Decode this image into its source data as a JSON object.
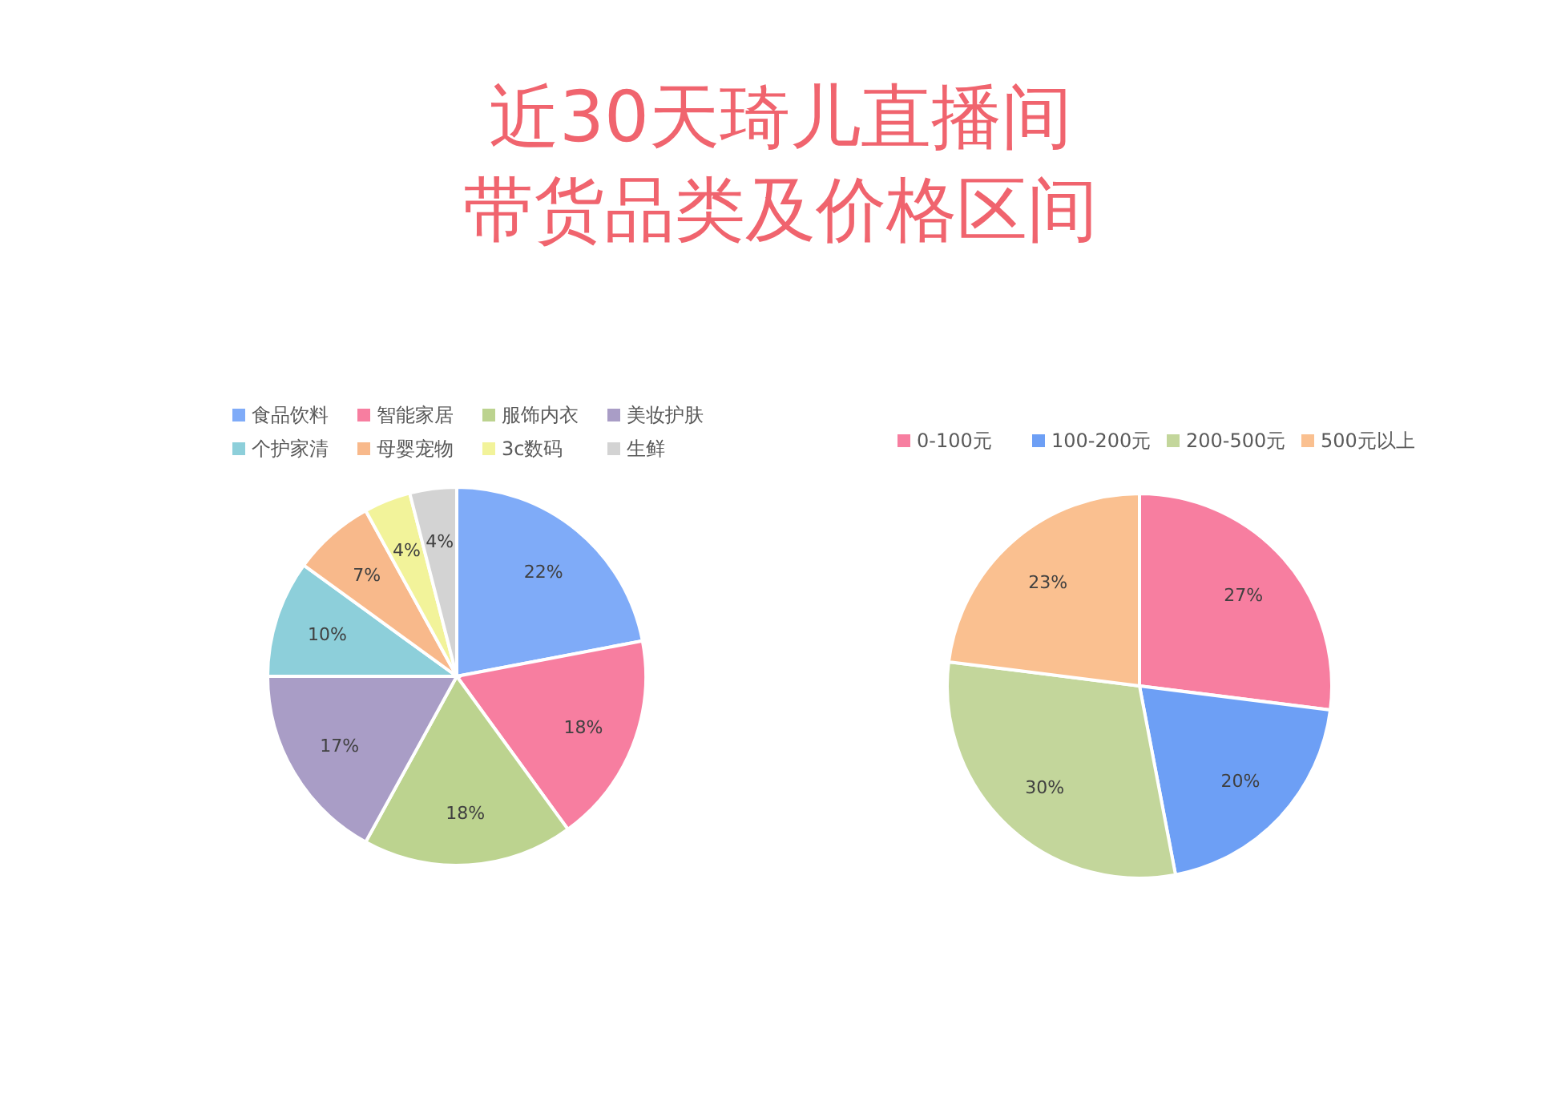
{
  "chart_data": [
    {
      "type": "pie",
      "title": "近30天琦儿直播间",
      "subtitle": "带货品类及价格区间",
      "categories": [
        "食品饮料",
        "智能家居",
        "服饰内衣",
        "美妆护肤",
        "个护家清",
        "母婴宠物",
        "3c数码",
        "生鲜"
      ],
      "values": [
        22,
        18,
        18,
        17,
        10,
        7,
        4,
        4
      ],
      "value_labels": [
        "22%",
        "18%",
        "18%",
        "17%",
        "10%",
        "7%",
        "4%",
        "4%"
      ],
      "colors": [
        "#7fabf8",
        "#f77ea0",
        "#bcd38f",
        "#a99dc6",
        "#8dcfda",
        "#f8b98b",
        "#f2f39a",
        "#d3d3d3"
      ],
      "legend": "top"
    },
    {
      "type": "pie",
      "categories": [
        "0-100元",
        "100-200元",
        "200-500元",
        "500元以上"
      ],
      "values": [
        27,
        20,
        30,
        23
      ],
      "value_labels": [
        "27%",
        "20%",
        "30%",
        "23%"
      ],
      "colors": [
        "#f77ea0",
        "#6d9ff5",
        "#c3d69b",
        "#fac090"
      ],
      "legend": "top"
    }
  ]
}
